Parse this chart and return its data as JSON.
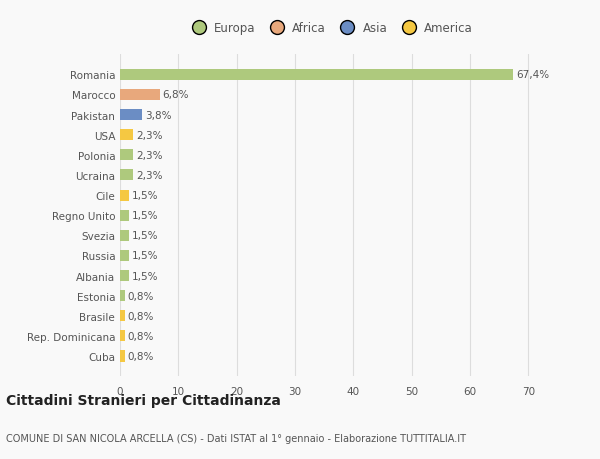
{
  "countries": [
    "Romania",
    "Marocco",
    "Pakistan",
    "USA",
    "Polonia",
    "Ucraina",
    "Cile",
    "Regno Unito",
    "Svezia",
    "Russia",
    "Albania",
    "Estonia",
    "Brasile",
    "Rep. Dominicana",
    "Cuba"
  ],
  "values": [
    67.4,
    6.8,
    3.8,
    2.3,
    2.3,
    2.3,
    1.5,
    1.5,
    1.5,
    1.5,
    1.5,
    0.8,
    0.8,
    0.8,
    0.8
  ],
  "labels": [
    "67,4%",
    "6,8%",
    "3,8%",
    "2,3%",
    "2,3%",
    "2,3%",
    "1,5%",
    "1,5%",
    "1,5%",
    "1,5%",
    "1,5%",
    "0,8%",
    "0,8%",
    "0,8%",
    "0,8%"
  ],
  "colors": [
    "#aec97d",
    "#e8a87c",
    "#6b8dc4",
    "#f5c842",
    "#aec97d",
    "#aec97d",
    "#f5c842",
    "#aec97d",
    "#aec97d",
    "#aec97d",
    "#aec97d",
    "#aec97d",
    "#f5c842",
    "#f5c842",
    "#f5c842"
  ],
  "legend_labels": [
    "Europa",
    "Africa",
    "Asia",
    "America"
  ],
  "legend_colors": [
    "#aec97d",
    "#e8a87c",
    "#6b8dc4",
    "#f5c842"
  ],
  "xlim": [
    0,
    72
  ],
  "xticks": [
    0,
    10,
    20,
    30,
    40,
    50,
    60,
    70
  ],
  "title": "Cittadini Stranieri per Cittadinanza",
  "subtitle": "COMUNE DI SAN NICOLA ARCELLA (CS) - Dati ISTAT al 1° gennaio - Elaborazione TUTTITALIA.IT",
  "background_color": "#f9f9f9",
  "grid_color": "#dddddd",
  "text_color": "#555555",
  "bar_height": 0.55,
  "label_fontsize": 7.5,
  "tick_fontsize": 7.5,
  "legend_fontsize": 8.5,
  "title_fontsize": 10,
  "subtitle_fontsize": 7.0
}
